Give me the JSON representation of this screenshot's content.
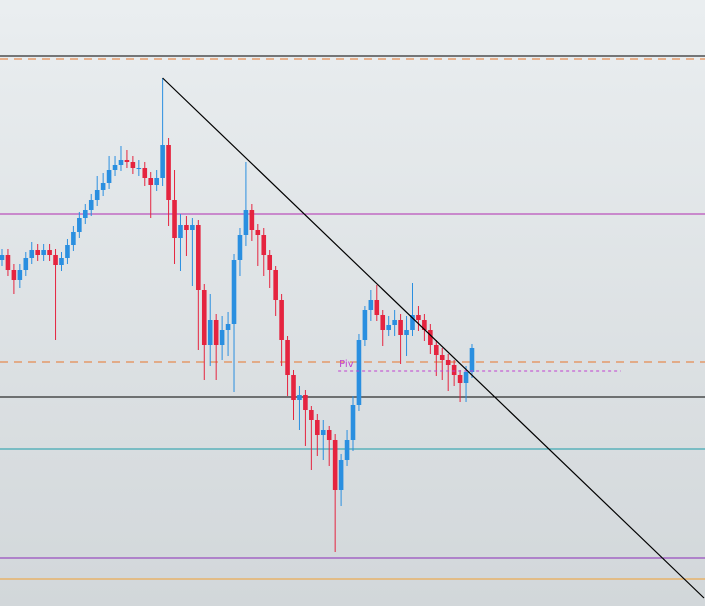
{
  "chart_data": {
    "type": "candlestick",
    "x": [
      0,
      1,
      2,
      3,
      4,
      5,
      6,
      7,
      8,
      9,
      10,
      11,
      12,
      13,
      14,
      15,
      16,
      17,
      18,
      19,
      20,
      21,
      22,
      23,
      24,
      25,
      26,
      27,
      28,
      29,
      30,
      31,
      32,
      33,
      34,
      35,
      36,
      37,
      38,
      39,
      40,
      41,
      42,
      43,
      44,
      45,
      46,
      47,
      48,
      49,
      50,
      51,
      52,
      53,
      54,
      55,
      56,
      57,
      58,
      59,
      60,
      61,
      62,
      63,
      64,
      65,
      66,
      67,
      68,
      69,
      70,
      71,
      72,
      73,
      74,
      75,
      76,
      77,
      78,
      79
    ],
    "open": [
      346,
      351,
      336,
      326,
      336,
      348,
      356,
      351,
      356,
      351,
      341,
      348,
      361,
      374,
      388,
      396,
      406,
      416,
      423,
      436,
      441,
      446,
      444,
      438,
      438,
      428,
      421,
      428,
      461,
      406,
      368,
      381,
      376,
      381,
      316,
      261,
      286,
      261,
      276,
      282,
      346,
      371,
      396,
      376,
      371,
      351,
      336,
      306,
      266,
      231,
      206,
      211,
      196,
      186,
      171,
      176,
      166,
      116,
      146,
      166,
      201,
      266,
      296,
      306,
      291,
      276,
      281,
      286,
      271,
      276,
      291,
      286,
      276,
      261,
      251,
      246,
      241,
      231,
      223,
      234
    ],
    "high": [
      357,
      357,
      342,
      342,
      354,
      364,
      362,
      362,
      362,
      357,
      354,
      367,
      380,
      394,
      402,
      412,
      430,
      433,
      450,
      450,
      460,
      456,
      450,
      446,
      444,
      434,
      436,
      528,
      468,
      436,
      392,
      390,
      388,
      386,
      322,
      312,
      292,
      290,
      294,
      352,
      378,
      444,
      402,
      382,
      378,
      356,
      340,
      312,
      270,
      236,
      220,
      216,
      200,
      192,
      186,
      180,
      172,
      152,
      176,
      210,
      272,
      300,
      316,
      321,
      296,
      290,
      296,
      292,
      290,
      323,
      300,
      292,
      282,
      266,
      258,
      252,
      246,
      236,
      240,
      262
    ],
    "low": [
      340,
      330,
      312,
      318,
      330,
      342,
      345,
      345,
      345,
      266,
      335,
      342,
      355,
      368,
      382,
      390,
      400,
      410,
      417,
      430,
      435,
      438,
      432,
      430,
      420,
      388,
      415,
      420,
      380,
      342,
      335,
      350,
      320,
      256,
      226,
      240,
      226,
      246,
      250,
      214,
      330,
      360,
      365,
      340,
      330,
      318,
      290,
      240,
      210,
      186,
      176,
      160,
      136,
      150,
      146,
      140,
      54,
      100,
      140,
      155,
      195,
      260,
      285,
      285,
      260,
      270,
      270,
      242,
      250,
      270,
      275,
      265,
      252,
      230,
      226,
      215,
      220,
      204,
      204,
      228
    ],
    "close": [
      351,
      336,
      326,
      336,
      348,
      356,
      351,
      356,
      351,
      341,
      348,
      361,
      374,
      388,
      396,
      406,
      416,
      423,
      436,
      441,
      446,
      444,
      438,
      438,
      428,
      421,
      428,
      461,
      406,
      368,
      381,
      376,
      381,
      316,
      261,
      286,
      261,
      276,
      282,
      346,
      371,
      396,
      376,
      371,
      351,
      336,
      306,
      266,
      231,
      206,
      211,
      196,
      186,
      171,
      176,
      166,
      116,
      146,
      166,
      201,
      266,
      296,
      306,
      291,
      276,
      281,
      286,
      271,
      276,
      291,
      286,
      276,
      261,
      251,
      246,
      241,
      231,
      223,
      234,
      258
    ],
    "up_color": "#2a8fe0",
    "down_color": "#e5243f",
    "xlim": [
      0,
      118
    ],
    "ylim": [
      0,
      606
    ],
    "hlines": [
      {
        "value": 550,
        "color": "#000000",
        "style": "solid"
      },
      {
        "value": 547,
        "color": "#e8762c",
        "style": "dashed"
      },
      {
        "value": 392,
        "color": "#b02cb0",
        "style": "solid"
      },
      {
        "value": 244,
        "color": "#e8762c",
        "style": "dashed"
      },
      {
        "value": 209,
        "color": "#000000",
        "style": "solid"
      },
      {
        "value": 157,
        "color": "#1a9aa8",
        "style": "solid"
      },
      {
        "value": 48,
        "color": "#8a2bb8",
        "style": "solid"
      },
      {
        "value": 27,
        "color": "#f0a030",
        "style": "solid"
      }
    ],
    "trendline": {
      "x": [
        27,
        118
      ],
      "values": [
        528,
        8
      ],
      "color": "#000000"
    },
    "pivot": {
      "label": "Piv",
      "value": 235,
      "x": [
        56.5,
        104
      ],
      "color": "#c040d0"
    }
  }
}
